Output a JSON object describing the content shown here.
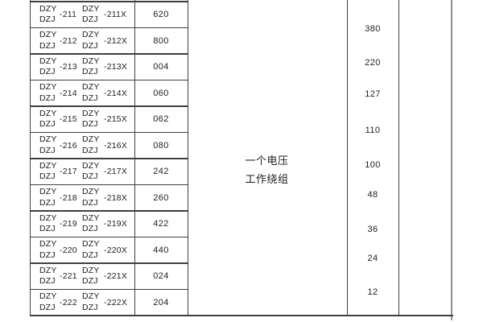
{
  "colors": {
    "background": "#ffffff",
    "grid_line_dark": "#3f3f3f",
    "grid_line_gray": "#8f8f8f",
    "text": "#1d1d1d"
  },
  "winding_cell": {
    "line1": "一个电压",
    "line2": "工作绕组"
  },
  "voltage_column": {
    "values": [
      "380",
      "220",
      "127",
      "110",
      "100",
      "48",
      "36",
      "24",
      "12"
    ]
  },
  "model_table": {
    "rows": [
      {
        "prefix_top": "DZY",
        "prefix_bottom": "DZJ",
        "suffix": "-211",
        "suffix_x": "-211X",
        "code": "620"
      },
      {
        "prefix_top": "DZY",
        "prefix_bottom": "DZJ",
        "suffix": "-212",
        "suffix_x": "-212X",
        "code": "800"
      },
      {
        "prefix_top": "DZY",
        "prefix_bottom": "DZJ",
        "suffix": "-213",
        "suffix_x": "-213X",
        "code": "004"
      },
      {
        "prefix_top": "DZY",
        "prefix_bottom": "DZJ",
        "suffix": "-214",
        "suffix_x": "-214X",
        "code": "060"
      },
      {
        "prefix_top": "DZY",
        "prefix_bottom": "DZJ",
        "suffix": "-215",
        "suffix_x": "-215X",
        "code": "062"
      },
      {
        "prefix_top": "DZY",
        "prefix_bottom": "DZJ",
        "suffix": "-216",
        "suffix_x": "-216X",
        "code": "080"
      },
      {
        "prefix_top": "DZY",
        "prefix_bottom": "DZJ",
        "suffix": "-217",
        "suffix_x": "-217X",
        "code": "242"
      },
      {
        "prefix_top": "DZY",
        "prefix_bottom": "DZJ",
        "suffix": "-218",
        "suffix_x": "-218X",
        "code": "260"
      },
      {
        "prefix_top": "DZY",
        "prefix_bottom": "DZJ",
        "suffix": "-219",
        "suffix_x": "-219X",
        "code": "422"
      },
      {
        "prefix_top": "DZY",
        "prefix_bottom": "DZJ",
        "suffix": "-220",
        "suffix_x": "-220X",
        "code": "440"
      },
      {
        "prefix_top": "DZY",
        "prefix_bottom": "DZJ",
        "suffix": "-221",
        "suffix_x": "-221X",
        "code": "024"
      },
      {
        "prefix_top": "DZY",
        "prefix_bottom": "DZJ",
        "suffix": "-222",
        "suffix_x": "-222X",
        "code": "204"
      }
    ]
  }
}
